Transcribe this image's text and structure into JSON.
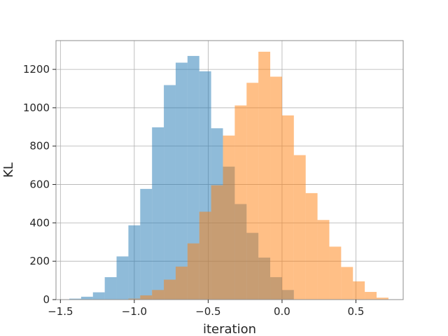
{
  "chart_data": {
    "type": "bar",
    "subtype": "overlapping-histogram",
    "title": "",
    "xlabel": "iteration",
    "ylabel": "KL",
    "xlim": [
      -1.53,
      0.82
    ],
    "ylim": [
      0,
      1350
    ],
    "xticks": [
      -1.5,
      -1.0,
      -0.5,
      0.0,
      0.5
    ],
    "xtick_labels": [
      "−1.5",
      "−1.0",
      "−0.5",
      "0.0",
      "0.5"
    ],
    "yticks": [
      0,
      200,
      400,
      600,
      800,
      1000,
      1200
    ],
    "ytick_labels": [
      "0",
      "200",
      "400",
      "600",
      "800",
      "1000",
      "1200"
    ],
    "grid": true,
    "legend": "none",
    "series": [
      {
        "color": "#1f77b4",
        "opacity": 0.5,
        "bin_edges": [
          -1.44,
          -1.36,
          -1.28,
          -1.2,
          -1.12,
          -1.04,
          -0.96,
          -0.88,
          -0.8,
          -0.72,
          -0.64,
          -0.56,
          -0.48,
          -0.4,
          -0.32,
          -0.24,
          -0.16,
          -0.08,
          0.0,
          0.08
        ],
        "counts": [
          5,
          15,
          38,
          117,
          225,
          387,
          577,
          898,
          1118,
          1235,
          1270,
          1190,
          893,
          693,
          498,
          348,
          219,
          117,
          50
        ]
      },
      {
        "color": "#ff7f0e",
        "opacity": 0.5,
        "bin_edges": [
          -1.04,
          -0.96,
          -0.88,
          -0.8,
          -0.72,
          -0.64,
          -0.56,
          -0.48,
          -0.4,
          -0.32,
          -0.24,
          -0.16,
          -0.08,
          0.0,
          0.08,
          0.16,
          0.24,
          0.32,
          0.4,
          0.48,
          0.56,
          0.64,
          0.72
        ],
        "counts": [
          5,
          22,
          50,
          104,
          172,
          293,
          458,
          596,
          855,
          1012,
          1130,
          1292,
          1162,
          960,
          753,
          555,
          415,
          276,
          170,
          95,
          40,
          10
        ]
      }
    ]
  }
}
